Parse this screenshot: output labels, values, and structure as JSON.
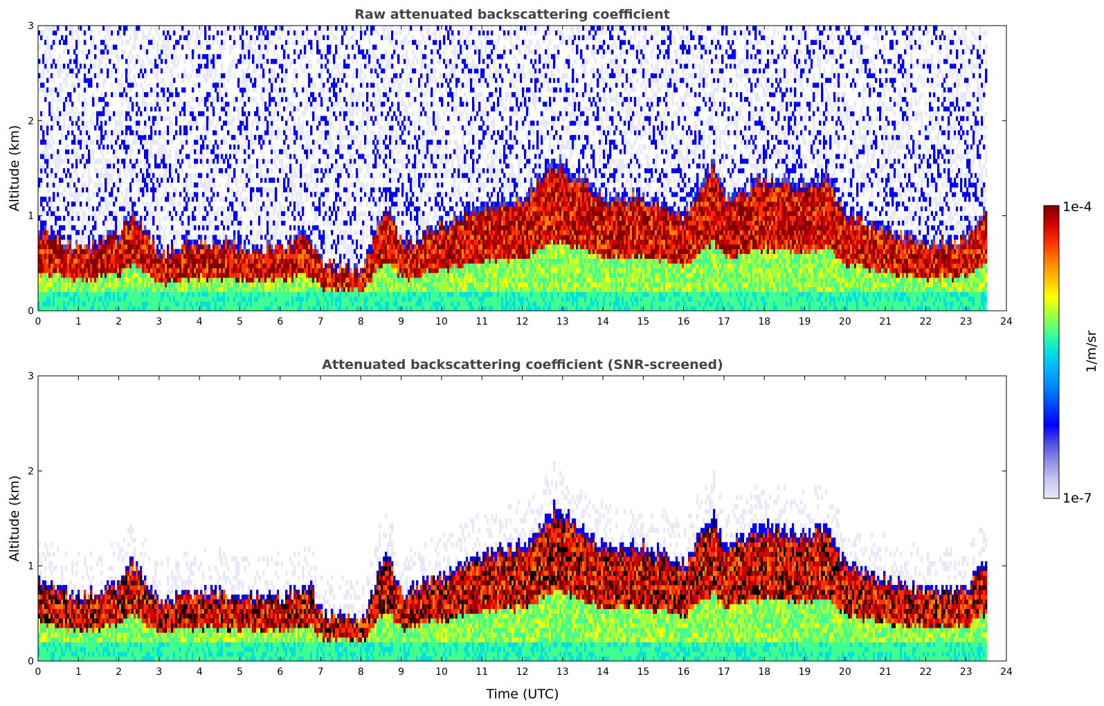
{
  "chart_data": [
    {
      "type": "heatmap",
      "title": "Raw attenuated backscattering coefficient",
      "xlabel": "",
      "ylabel": "Altitude (km)",
      "xlim": [
        0,
        24
      ],
      "ylim": [
        0,
        3
      ],
      "x_ticks": [
        "0",
        "1",
        "2",
        "3",
        "4",
        "5",
        "6",
        "7",
        "8",
        "9",
        "10",
        "11",
        "12",
        "13",
        "14",
        "15",
        "16",
        "17",
        "18",
        "19",
        "20",
        "21",
        "22",
        "23",
        "24"
      ],
      "y_ticks": [
        "0",
        "1",
        "2",
        "3"
      ],
      "data_end_hour": 23.5,
      "boundary_layer_top_km": [
        {
          "t": 0,
          "z": 0.85
        },
        {
          "t": 1,
          "z": 0.65
        },
        {
          "t": 2,
          "z": 0.8
        },
        {
          "t": 2.3,
          "z": 1.05
        },
        {
          "t": 3,
          "z": 0.6
        },
        {
          "t": 4,
          "z": 0.72
        },
        {
          "t": 5,
          "z": 0.68
        },
        {
          "t": 6,
          "z": 0.65
        },
        {
          "t": 6.7,
          "z": 0.8
        },
        {
          "t": 7,
          "z": 0.5
        },
        {
          "t": 8,
          "z": 0.4
        },
        {
          "t": 8.6,
          "z": 1.15
        },
        {
          "t": 9,
          "z": 0.7
        },
        {
          "t": 10,
          "z": 0.9
        },
        {
          "t": 11,
          "z": 1.1
        },
        {
          "t": 12,
          "z": 1.2
        },
        {
          "t": 12.8,
          "z": 1.6
        },
        {
          "t": 14,
          "z": 1.2
        },
        {
          "t": 15,
          "z": 1.2
        },
        {
          "t": 16,
          "z": 1.0
        },
        {
          "t": 16.7,
          "z": 1.55
        },
        {
          "t": 17,
          "z": 1.2
        },
        {
          "t": 18,
          "z": 1.4
        },
        {
          "t": 19,
          "z": 1.3
        },
        {
          "t": 19.5,
          "z": 1.45
        },
        {
          "t": 20,
          "z": 1.0
        },
        {
          "t": 21,
          "z": 0.85
        },
        {
          "t": 22,
          "z": 0.7
        },
        {
          "t": 23,
          "z": 0.75
        },
        {
          "t": 23.5,
          "z": 1.1
        }
      ]
    },
    {
      "type": "heatmap",
      "title": "Attenuated backscattering coefficient (SNR-screened)",
      "xlabel": "Time (UTC)",
      "ylabel": "Altitude (km)",
      "xlim": [
        0,
        24
      ],
      "ylim": [
        0,
        3
      ],
      "x_ticks": [
        "0",
        "1",
        "2",
        "3",
        "4",
        "5",
        "6",
        "7",
        "8",
        "9",
        "10",
        "11",
        "12",
        "13",
        "14",
        "15",
        "16",
        "17",
        "18",
        "19",
        "20",
        "21",
        "22",
        "23",
        "24"
      ],
      "y_ticks": [
        "0",
        "1",
        "2",
        "3"
      ],
      "data_end_hour": 23.5
    }
  ],
  "colorbar": {
    "label": "1/m/sr",
    "max_label": "1e-4",
    "min_label": "1e-7",
    "colors": [
      "#e8e8f8",
      "#c8c8f0",
      "#9090e8",
      "#5050e0",
      "#0000ff",
      "#0040ff",
      "#0080ff",
      "#00b0ff",
      "#00e0e0",
      "#40ff90",
      "#a0ff40",
      "#ffff00",
      "#ffc000",
      "#ff8000",
      "#ff3000",
      "#d00000",
      "#800000"
    ]
  }
}
